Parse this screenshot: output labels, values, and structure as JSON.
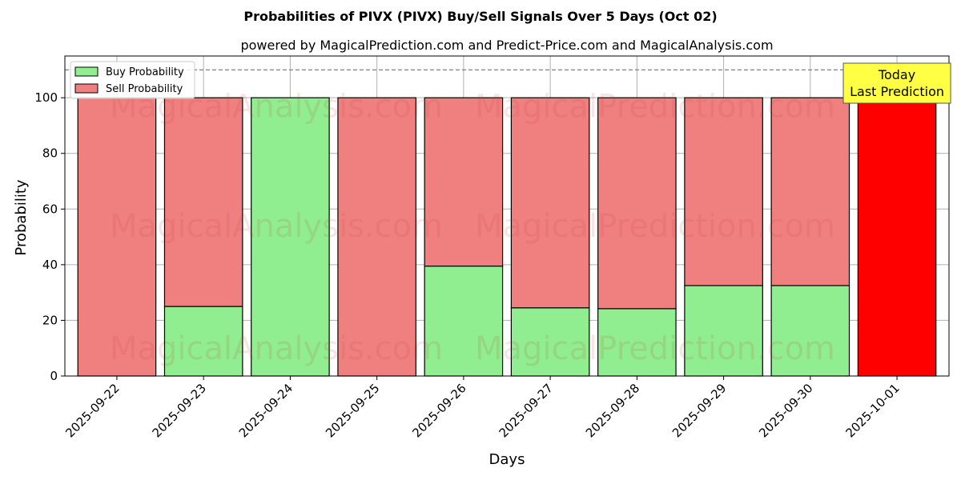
{
  "chart_data": {
    "type": "bar",
    "stacked": true,
    "title": "Probabilities of PIVX (PIVX) Buy/Sell Signals Over 5 Days (Oct 02)",
    "subtitle": "powered by MagicalPrediction.com and Predict-Price.com and MagicalAnalysis.com",
    "xlabel": "Days",
    "ylabel": "Probability",
    "ylim": [
      0,
      115
    ],
    "yticks": [
      0,
      20,
      40,
      60,
      80,
      100
    ],
    "grid": true,
    "legend_position": "top-left",
    "categories": [
      "2025-09-22",
      "2025-09-23",
      "2025-09-24",
      "2025-09-25",
      "2025-09-26",
      "2025-09-27",
      "2025-09-28",
      "2025-09-29",
      "2025-09-30",
      "2025-10-01"
    ],
    "series": [
      {
        "name": "Buy Probability",
        "color": "#90ee90",
        "values": [
          0,
          25,
          100,
          0,
          39.5,
          24.5,
          24.2,
          32.5,
          32.5,
          0
        ]
      },
      {
        "name": "Sell Probability",
        "color": "#f08080",
        "values": [
          100,
          75,
          0,
          100,
          60.5,
          75.5,
          75.8,
          67.5,
          67.5,
          100
        ]
      }
    ],
    "highlight": {
      "index": 9,
      "color": "#ff0000"
    },
    "reference_line": {
      "y": 110,
      "style": "dashed",
      "color": "#808080"
    },
    "annotation": {
      "lines": [
        "Today",
        "Last Prediction"
      ],
      "background": "#ffff44",
      "category_index": 9
    },
    "watermarks": [
      "MagicalAnalysis.com",
      "MagicalPrediction.com"
    ]
  }
}
